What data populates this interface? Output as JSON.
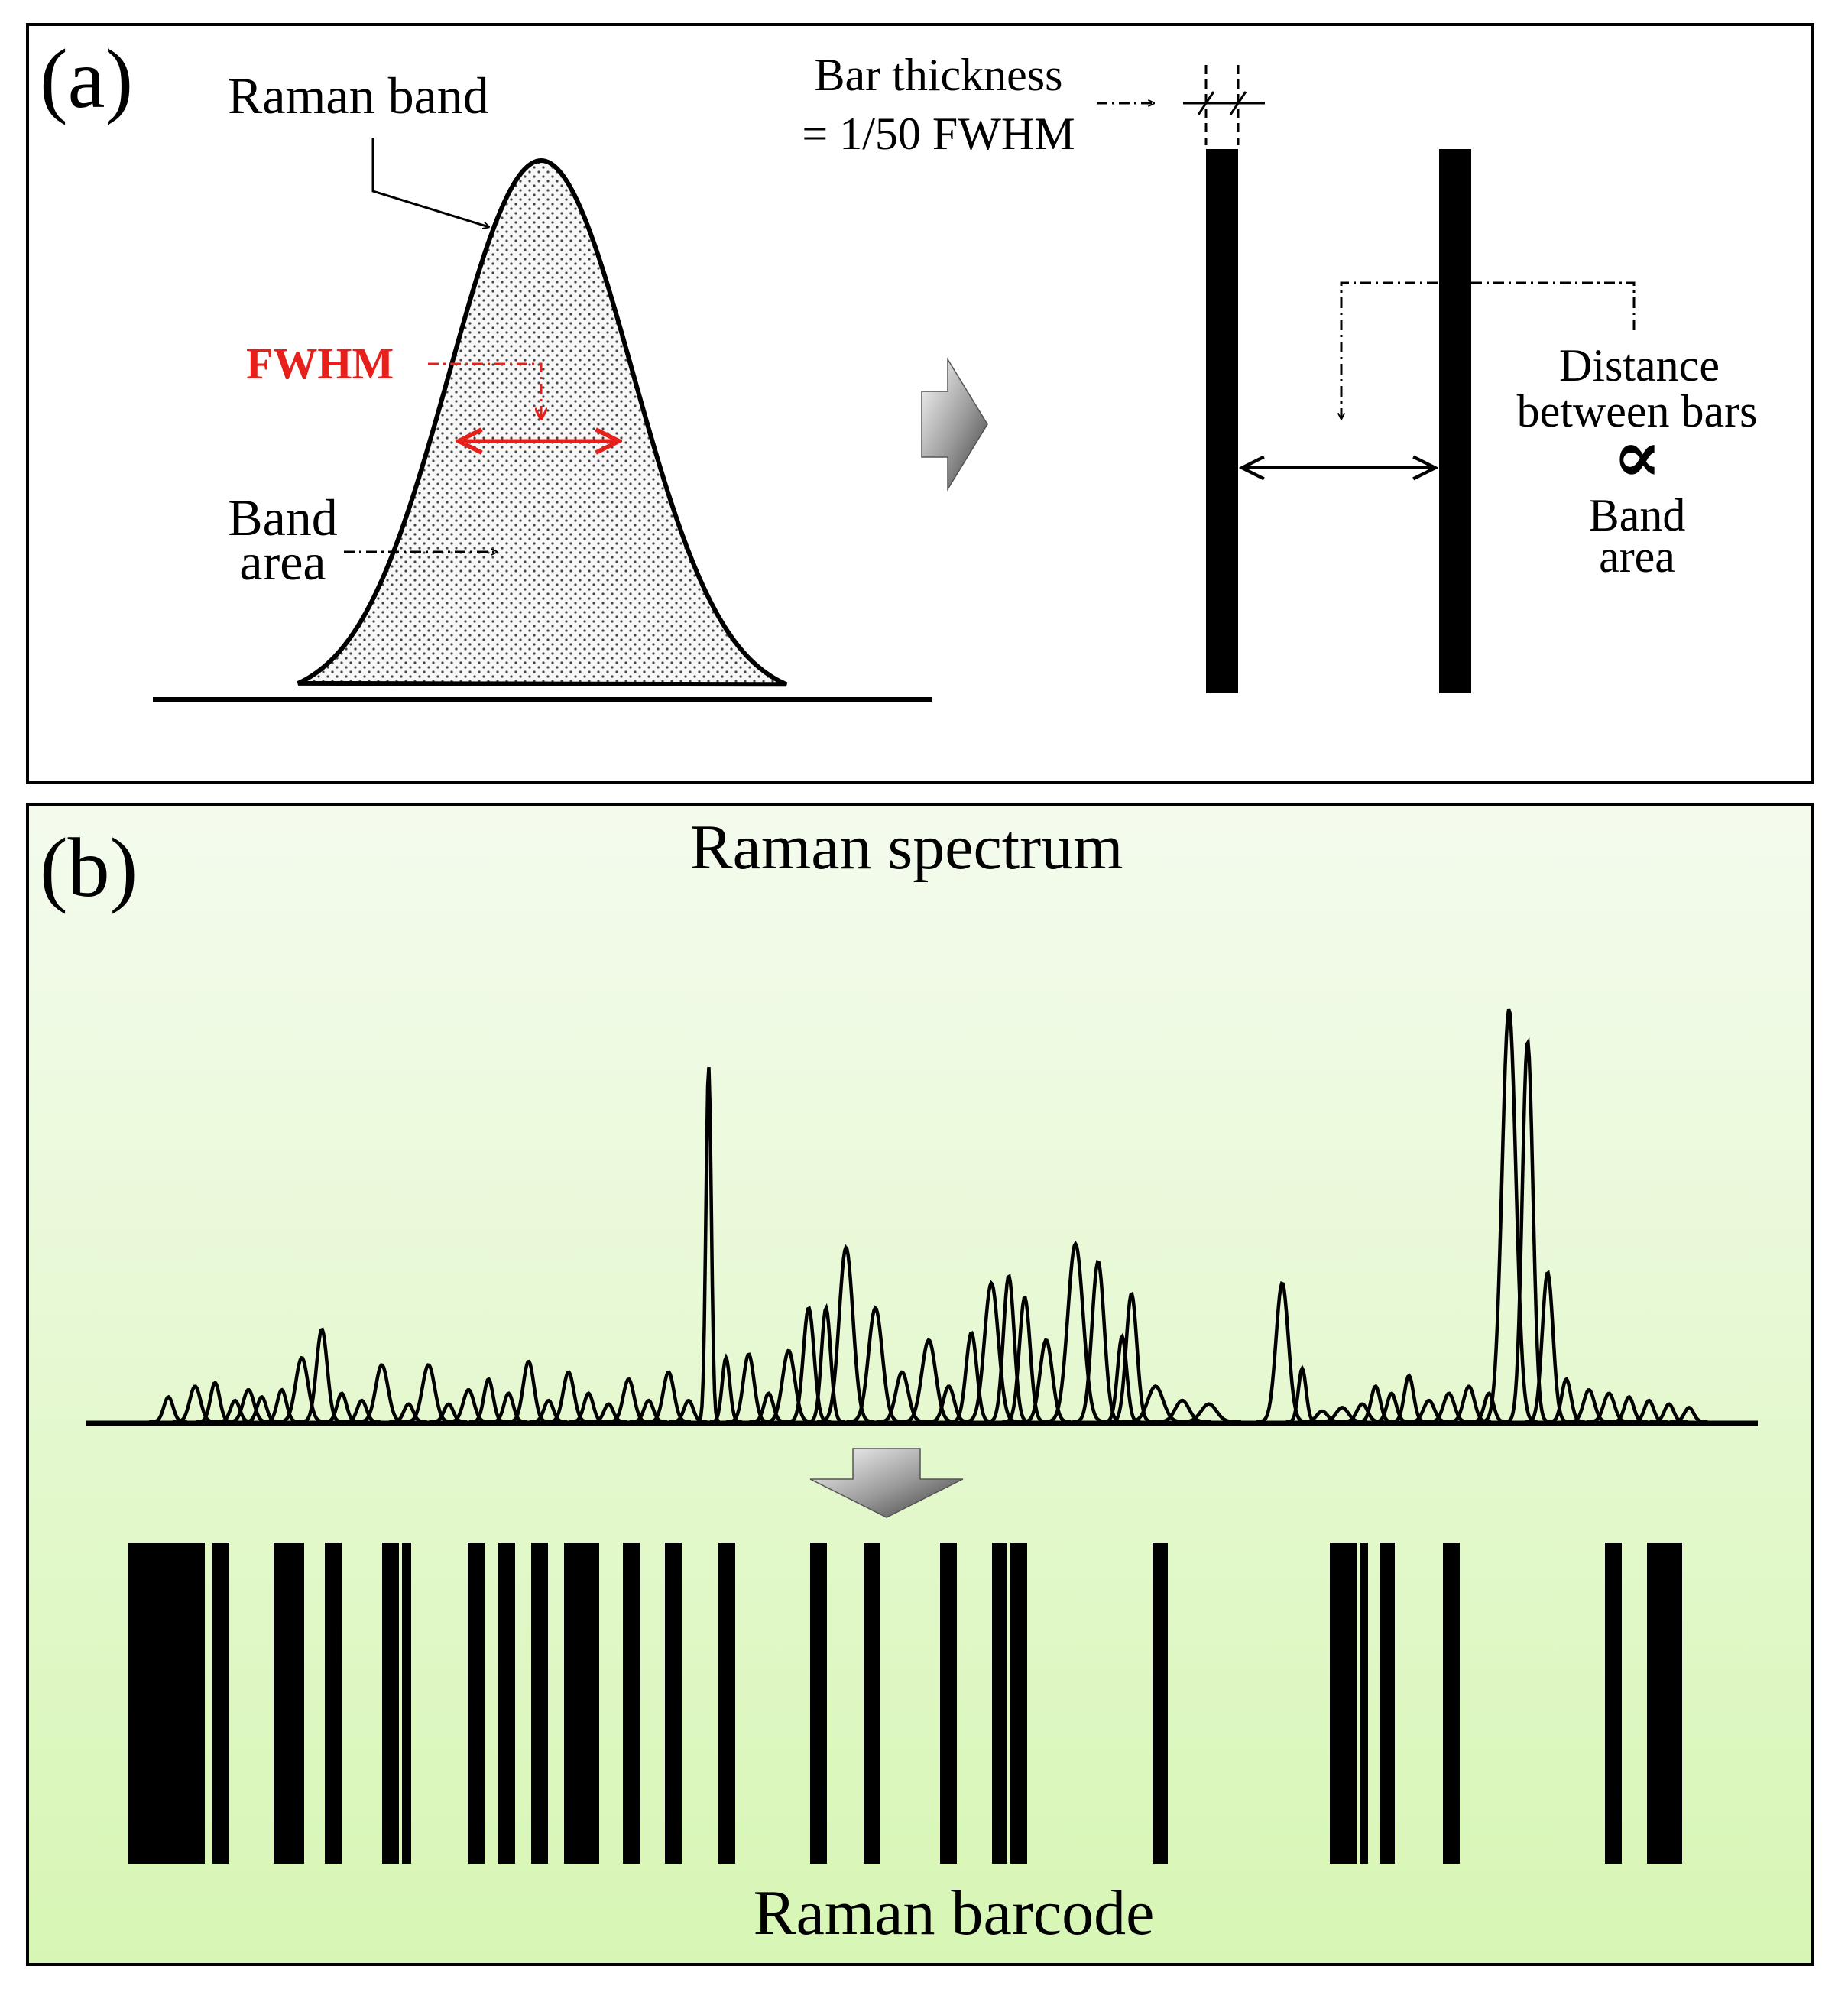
{
  "panel_a": {
    "label": "(a)",
    "raman_band_label": "Raman band",
    "fwhm_label": "FWHM",
    "band_area_line1": "Band",
    "band_area_line2": "area",
    "bar_thickness_line1": "Bar thickness",
    "bar_thickness_line2": "= 1/50 FWHM",
    "distance_line1": "Distance",
    "distance_line2": "between bars",
    "proportional_symbol": "∝",
    "band_area2_line1": "Band",
    "band_area2_line2": "area"
  },
  "panel_b": {
    "label": "(b)",
    "spectrum_title": "Raman spectrum",
    "barcode_title": "Raman barcode"
  },
  "colors": {
    "fwhm": "#e8201c",
    "panel_b_top": "#f4fbee",
    "panel_b_bottom": "#d7f6b4",
    "ink": "#000000"
  },
  "spectrum": {
    "peaks": [
      [
        0.03,
        0.07,
        6
      ],
      [
        0.05,
        0.1,
        7
      ],
      [
        0.065,
        0.11,
        6
      ],
      [
        0.08,
        0.06,
        6
      ],
      [
        0.09,
        0.09,
        7
      ],
      [
        0.1,
        0.07,
        6
      ],
      [
        0.115,
        0.09,
        6
      ],
      [
        0.13,
        0.18,
        8
      ],
      [
        0.145,
        0.26,
        7
      ],
      [
        0.16,
        0.08,
        6
      ],
      [
        0.175,
        0.06,
        6
      ],
      [
        0.19,
        0.16,
        8
      ],
      [
        0.21,
        0.05,
        6
      ],
      [
        0.225,
        0.16,
        8
      ],
      [
        0.24,
        0.05,
        6
      ],
      [
        0.255,
        0.09,
        7
      ],
      [
        0.27,
        0.12,
        6
      ],
      [
        0.285,
        0.08,
        6
      ],
      [
        0.3,
        0.17,
        7
      ],
      [
        0.315,
        0.06,
        6
      ],
      [
        0.33,
        0.14,
        7
      ],
      [
        0.345,
        0.08,
        6
      ],
      [
        0.36,
        0.05,
        6
      ],
      [
        0.375,
        0.12,
        7
      ],
      [
        0.39,
        0.06,
        6
      ],
      [
        0.405,
        0.14,
        7
      ],
      [
        0.42,
        0.06,
        6
      ],
      [
        0.435,
        1.0,
        3.5
      ],
      [
        0.448,
        0.18,
        5
      ],
      [
        0.465,
        0.19,
        7
      ],
      [
        0.48,
        0.08,
        6
      ],
      [
        0.495,
        0.2,
        8
      ],
      [
        0.51,
        0.32,
        7
      ],
      [
        0.523,
        0.32,
        6
      ],
      [
        0.538,
        0.49,
        9
      ],
      [
        0.56,
        0.32,
        9
      ],
      [
        0.58,
        0.14,
        8
      ],
      [
        0.6,
        0.23,
        9
      ],
      [
        0.615,
        0.1,
        7
      ],
      [
        0.632,
        0.25,
        7
      ],
      [
        0.647,
        0.39,
        9
      ],
      [
        0.66,
        0.41,
        7
      ],
      [
        0.672,
        0.35,
        7
      ],
      [
        0.688,
        0.23,
        8
      ],
      [
        0.71,
        0.5,
        10
      ],
      [
        0.727,
        0.45,
        8
      ],
      [
        0.745,
        0.24,
        6
      ],
      [
        0.752,
        0.36,
        7
      ],
      [
        0.77,
        0.1,
        10
      ],
      [
        0.79,
        0.06,
        9
      ],
      [
        0.81,
        0.05,
        10
      ],
      [
        0.865,
        0.39,
        8
      ],
      [
        0.88,
        0.15,
        5
      ],
      [
        0.895,
        0.03,
        7
      ],
      [
        0.91,
        0.04,
        8
      ],
      [
        0.925,
        0.05,
        7
      ],
      [
        0.935,
        0.1,
        6
      ],
      [
        0.947,
        0.08,
        6
      ],
      [
        0.96,
        0.13,
        6
      ],
      [
        0.975,
        0.06,
        7
      ],
      [
        0.99,
        0.08,
        7
      ],
      [
        1.005,
        0.1,
        7
      ],
      [
        1.02,
        0.08,
        6
      ],
      [
        1.035,
        1.16,
        9
      ],
      [
        1.049,
        1.07,
        7
      ],
      [
        1.064,
        0.42,
        7
      ],
      [
        1.078,
        0.12,
        6
      ],
      [
        1.095,
        0.09,
        7
      ],
      [
        1.11,
        0.08,
        7
      ],
      [
        1.125,
        0.07,
        6
      ],
      [
        1.14,
        0.06,
        6
      ],
      [
        1.155,
        0.05,
        6
      ],
      [
        1.17,
        0.04,
        6
      ]
    ]
  }
}
